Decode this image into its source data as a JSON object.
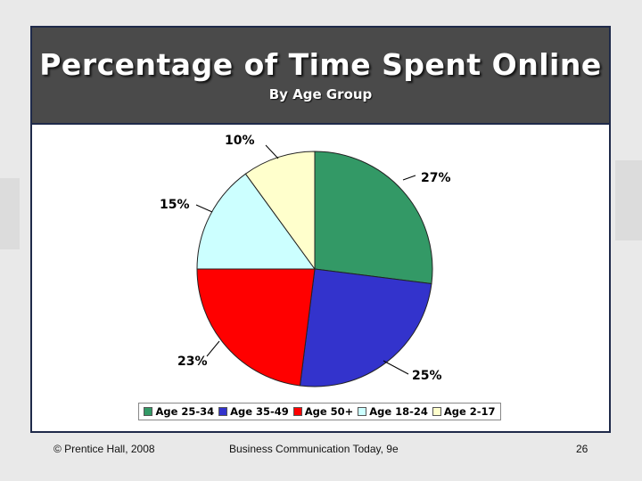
{
  "slide": {
    "title": "Percentage of Time Spent Online",
    "subtitle": "By Age Group"
  },
  "chart_data": {
    "type": "pie",
    "title": "Percentage of Time Spent Online",
    "subtitle": "By Age Group",
    "legend_position": "bottom",
    "slices": [
      {
        "name": "Age 25-34",
        "value": 27,
        "label": "27%",
        "color": "#339966"
      },
      {
        "name": "Age 35-49",
        "value": 25,
        "label": "25%",
        "color": "#3333cc"
      },
      {
        "name": "Age 50+",
        "value": 23,
        "label": "23%",
        "color": "#ff0000"
      },
      {
        "name": "Age 18-24",
        "value": 15,
        "label": "15%",
        "color": "#ccffff"
      },
      {
        "name": "Age 2-17",
        "value": 10,
        "label": "10%",
        "color": "#ffffcc"
      }
    ]
  },
  "footer": {
    "copyright": "© Prentice Hall, 2008",
    "book": "Business Communication Today, 9e",
    "page_number": "26"
  }
}
